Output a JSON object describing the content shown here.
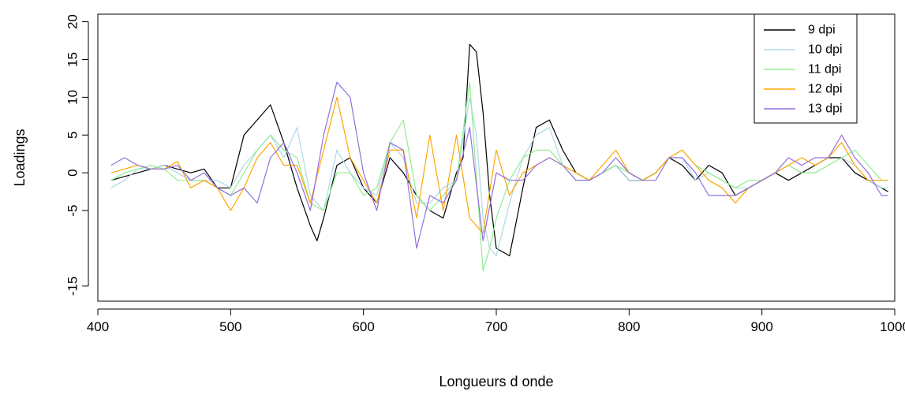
{
  "chart_data": {
    "type": "line",
    "title": "",
    "xlabel": "Longueurs d onde",
    "ylabel": "Loadings",
    "xlim": [
      400,
      1000
    ],
    "ylim": [
      -17,
      21
    ],
    "x_ticks": [
      400,
      500,
      600,
      700,
      800,
      900,
      1000
    ],
    "x_tick_labels": [
      "400",
      "500",
      "600",
      "700",
      "800",
      "900",
      "1000"
    ],
    "y_ticks": [
      -15,
      -5,
      0,
      5,
      10,
      15,
      20
    ],
    "y_tick_labels": [
      "-15",
      "-5",
      "0",
      "5",
      "10",
      "15",
      "20"
    ],
    "grid": false,
    "legend_position": "top-right",
    "series": [
      {
        "name": "9 dpi",
        "color": "#000000",
        "x": [
          410,
          420,
          430,
          440,
          450,
          460,
          470,
          480,
          490,
          500,
          510,
          520,
          530,
          540,
          550,
          560,
          565,
          570,
          580,
          590,
          600,
          610,
          620,
          630,
          640,
          650,
          660,
          670,
          675,
          680,
          685,
          690,
          695,
          700,
          710,
          720,
          730,
          740,
          750,
          760,
          770,
          780,
          790,
          800,
          810,
          820,
          830,
          840,
          850,
          860,
          870,
          880,
          890,
          900,
          910,
          920,
          930,
          940,
          950,
          960,
          970,
          980,
          990,
          995
        ],
        "y": [
          -1,
          -0.5,
          0,
          0.5,
          1,
          0.5,
          0,
          0.5,
          -2,
          -2,
          5,
          7,
          9,
          4,
          -2,
          -7,
          -9,
          -6,
          1,
          2,
          -2,
          -4,
          2,
          0,
          -3,
          -5,
          -6,
          0,
          2,
          17,
          16,
          8,
          -3,
          -10,
          -11,
          -2,
          6,
          7,
          3,
          0,
          -1,
          0,
          1,
          -1,
          -1,
          0,
          2,
          1,
          -1,
          1,
          0,
          -3,
          -2,
          -1,
          0,
          -1,
          0,
          1,
          2,
          2,
          0,
          -1,
          -2,
          -2.5
        ]
      },
      {
        "name": "10 dpi",
        "color": "#add8e6",
        "x": [
          410,
          420,
          430,
          440,
          450,
          460,
          470,
          480,
          490,
          500,
          510,
          520,
          530,
          540,
          550,
          560,
          570,
          580,
          590,
          600,
          610,
          620,
          630,
          640,
          650,
          660,
          670,
          680,
          685,
          690,
          695,
          700,
          710,
          720,
          730,
          740,
          750,
          760,
          770,
          780,
          790,
          800,
          810,
          820,
          830,
          840,
          850,
          860,
          870,
          880,
          890,
          900,
          910,
          920,
          930,
          940,
          950,
          960,
          970,
          980,
          990,
          995
        ],
        "y": [
          -2,
          -1,
          0.5,
          0.5,
          1,
          0,
          -1,
          -1,
          -1,
          -2,
          1,
          3,
          5,
          2,
          6,
          -3,
          -5,
          3,
          0,
          -2,
          -3,
          4,
          2,
          -4,
          -4,
          -2,
          -1,
          10,
          5,
          -6,
          -10,
          -11,
          -4,
          2,
          5,
          6,
          1,
          -1,
          -1,
          0,
          1,
          -1,
          -1,
          0,
          2,
          2,
          -1,
          0,
          -1,
          -2,
          -2,
          -1,
          0,
          1,
          0,
          0,
          1,
          2,
          1,
          -1,
          -2,
          -2
        ]
      },
      {
        "name": "11 dpi",
        "color": "#90ee90",
        "x": [
          410,
          420,
          430,
          440,
          450,
          460,
          470,
          480,
          490,
          500,
          510,
          520,
          530,
          540,
          550,
          560,
          570,
          580,
          590,
          600,
          610,
          620,
          630,
          640,
          650,
          660,
          670,
          680,
          690,
          695,
          700,
          710,
          720,
          730,
          740,
          750,
          760,
          770,
          780,
          790,
          800,
          810,
          820,
          830,
          840,
          850,
          860,
          870,
          880,
          890,
          900,
          910,
          920,
          930,
          940,
          950,
          960,
          970,
          980,
          990,
          995
        ],
        "y": [
          -1,
          0,
          0.5,
          1,
          0.5,
          -1,
          -1,
          -1,
          -2,
          -3,
          0,
          3,
          5,
          3,
          2,
          -4,
          -5,
          0,
          0,
          -3,
          -2,
          4,
          7,
          -3,
          -5,
          -3,
          -1,
          12,
          -13,
          -10,
          -6,
          -1,
          2,
          3,
          3,
          1,
          0,
          -1,
          0,
          1,
          0,
          -1,
          0,
          2,
          3,
          1,
          0,
          -1,
          -2,
          -1,
          -1,
          0,
          1,
          0,
          0,
          1,
          2,
          3,
          1,
          -1,
          -1
        ]
      },
      {
        "name": "12 dpi",
        "color": "#ffa500",
        "x": [
          410,
          420,
          430,
          440,
          450,
          460,
          470,
          480,
          490,
          500,
          510,
          520,
          530,
          540,
          550,
          560,
          570,
          580,
          590,
          600,
          610,
          620,
          630,
          640,
          650,
          660,
          670,
          680,
          690,
          700,
          710,
          720,
          730,
          740,
          750,
          760,
          770,
          780,
          790,
          800,
          810,
          820,
          830,
          840,
          850,
          860,
          870,
          880,
          890,
          900,
          910,
          920,
          930,
          940,
          950,
          960,
          970,
          980,
          990,
          995
        ],
        "y": [
          0,
          0.5,
          1,
          0.5,
          0.5,
          1.5,
          -2,
          -1,
          -2,
          -5,
          -2,
          2,
          4,
          1,
          1,
          -4,
          3,
          10,
          2,
          -1,
          -4,
          3,
          3,
          -6,
          5,
          -5,
          5,
          -6,
          -8,
          3,
          -3,
          0,
          1,
          2,
          1,
          0,
          -1,
          1,
          3,
          0,
          -1,
          0,
          2,
          3,
          1,
          -1,
          -2,
          -4,
          -2,
          -1,
          0,
          1,
          2,
          1,
          2,
          4,
          1,
          -1,
          -1,
          -1
        ]
      },
      {
        "name": "13 dpi",
        "color": "#9370db",
        "x": [
          410,
          420,
          430,
          440,
          450,
          460,
          470,
          480,
          490,
          500,
          510,
          520,
          530,
          540,
          550,
          560,
          570,
          580,
          590,
          600,
          610,
          620,
          630,
          640,
          650,
          660,
          670,
          680,
          690,
          700,
          710,
          720,
          730,
          740,
          750,
          760,
          770,
          780,
          790,
          800,
          810,
          820,
          830,
          840,
          850,
          860,
          870,
          880,
          890,
          900,
          910,
          920,
          930,
          940,
          950,
          960,
          970,
          980,
          990,
          995
        ],
        "y": [
          1,
          2,
          1,
          0.5,
          0.5,
          1,
          -1,
          0,
          -2,
          -3,
          -2,
          -4,
          2,
          4,
          0,
          -5,
          5,
          12,
          10,
          0,
          -5,
          4,
          3,
          -10,
          -3,
          -4,
          -1,
          6,
          -9,
          0,
          -1,
          -1,
          1,
          2,
          1,
          -1,
          -1,
          0,
          2,
          0,
          -1,
          -1,
          2,
          2,
          0,
          -3,
          -3,
          -3,
          -2,
          -1,
          0,
          2,
          1,
          2,
          2,
          5,
          2,
          0,
          -3,
          -3
        ]
      }
    ]
  }
}
